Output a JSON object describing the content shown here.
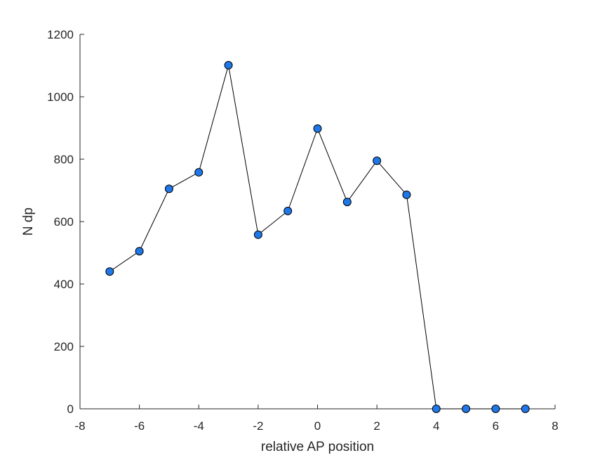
{
  "chart_data": {
    "type": "line",
    "title": "",
    "xlabel": "relative AP position",
    "ylabel": "N dp",
    "xlim": [
      -8,
      8
    ],
    "ylim": [
      0,
      1200
    ],
    "xticks": [
      -8,
      -6,
      -4,
      -2,
      0,
      2,
      4,
      6,
      8
    ],
    "yticks": [
      0,
      200,
      400,
      600,
      800,
      1000,
      1200
    ],
    "grid": false,
    "legend": "none",
    "series": [
      {
        "x": [
          -7,
          -6,
          -5,
          -4,
          -3,
          -2,
          -1,
          0,
          1,
          2,
          3,
          4,
          5,
          6,
          7
        ],
        "values": [
          440,
          505,
          705,
          758,
          1101,
          558,
          634,
          898,
          663,
          795,
          686,
          0,
          0,
          0,
          0
        ],
        "line_color": "#000000",
        "marker_color": "#1f77e8",
        "marker_edge": "#000000"
      }
    ]
  }
}
